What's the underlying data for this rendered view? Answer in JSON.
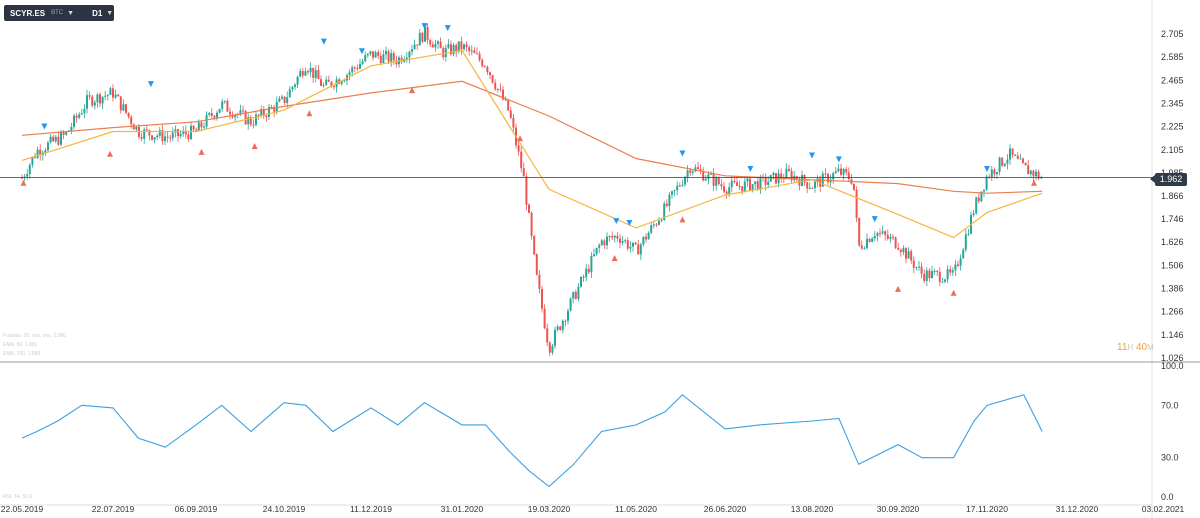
{
  "toolbar": {
    "symbol": "SCYR.ES",
    "symbol_sub": "BTC",
    "timeframe": "D1"
  },
  "colors": {
    "bull": "#26a69a",
    "bear": "#ef5350",
    "ma_fast": "#f4b63e",
    "ma_slow": "#ea7e4f",
    "rsi": "#3aa0e0",
    "current_line": "#2f3b48",
    "fractal_up": "#2196f3",
    "fractal_down": "#ef6c57",
    "axis_text": "#333333",
    "grid": "#e8e8e8"
  },
  "price_panel": {
    "y_ticks": [
      "2.705",
      "2.585",
      "2.465",
      "2.345",
      "2.225",
      "2.105",
      "1.985",
      "1.866",
      "1.746",
      "1.626",
      "1.506",
      "1.386",
      "1.266",
      "1.146",
      "1.026"
    ],
    "current_price": "1.962",
    "countdown": {
      "hours": "11",
      "hours_unit": "H",
      "minutes": "40",
      "minutes_unit": "M"
    },
    "legend_lines": [
      "Fractals, 20, ons, ons, 0.000",
      "EMA, 50, 1.881",
      "EMA, 200, 1.889"
    ]
  },
  "rsi_panel": {
    "y_ticks": [
      "100.0",
      "70.0",
      "30.0",
      "0.0"
    ],
    "legend": "RSI, 14, 50.0"
  },
  "x_axis": {
    "ticks": [
      "22.05.2019",
      "22.07.2019",
      "06.09.2019",
      "24.10.2019",
      "11.12.2019",
      "31.01.2020",
      "19.03.2020",
      "11.05.2020",
      "26.06.2020",
      "13.08.2020",
      "30.09.2020",
      "17.11.2020",
      "31.12.2020",
      "03.02.2021"
    ]
  },
  "chart_data": [
    {
      "type": "candlestick",
      "title": "SCYR.ES D1",
      "x_start": "22.05.2019",
      "x_end": "03.02.2021",
      "ylim": [
        1.026,
        2.705
      ],
      "current_price": 1.962,
      "close_path": [
        [
          "22.05.2019",
          1.96
        ],
        [
          "01.06.2019",
          2.1
        ],
        [
          "20.06.2019",
          2.18
        ],
        [
          "05.07.2019",
          2.36
        ],
        [
          "22.07.2019",
          2.4
        ],
        [
          "05.08.2019",
          2.2
        ],
        [
          "22.08.2019",
          2.17
        ],
        [
          "06.09.2019",
          2.2
        ],
        [
          "20.09.2019",
          2.34
        ],
        [
          "06.10.2019",
          2.25
        ],
        [
          "24.10.2019",
          2.36
        ],
        [
          "05.11.2019",
          2.55
        ],
        [
          "15.11.2019",
          2.43
        ],
        [
          "28.11.2019",
          2.5
        ],
        [
          "11.12.2019",
          2.6
        ],
        [
          "26.12.2019",
          2.57
        ],
        [
          "10.01.2020",
          2.71
        ],
        [
          "20.01.2020",
          2.61
        ],
        [
          "31.01.2020",
          2.64
        ],
        [
          "13.02.2020",
          2.55
        ],
        [
          "26.02.2020",
          2.3
        ],
        [
          "05.03.2020",
          1.96
        ],
        [
          "12.03.2020",
          1.45
        ],
        [
          "19.03.2020",
          1.08
        ],
        [
          "03.04.2020",
          1.34
        ],
        [
          "20.04.2020",
          1.63
        ],
        [
          "30.04.2020",
          1.66
        ],
        [
          "11.05.2020",
          1.58
        ],
        [
          "26.05.2020",
          1.8
        ],
        [
          "08.06.2020",
          2.02
        ],
        [
          "26.06.2020",
          1.91
        ],
        [
          "15.07.2020",
          1.93
        ],
        [
          "31.07.2020",
          1.98
        ],
        [
          "13.08.2020",
          1.92
        ],
        [
          "28.08.2020",
          1.99
        ],
        [
          "05.09.2020",
          1.95
        ],
        [
          "08.09.2020",
          1.6
        ],
        [
          "17.09.2020",
          1.68
        ],
        [
          "30.09.2020",
          1.62
        ],
        [
          "13.10.2020",
          1.46
        ],
        [
          "30.10.2020",
          1.45
        ],
        [
          "10.11.2020",
          1.8
        ],
        [
          "17.11.2020",
          1.97
        ],
        [
          "28.11.2020",
          2.08
        ],
        [
          "05.12.2020",
          2.01
        ],
        [
          "14.12.2020",
          1.96
        ]
      ],
      "ema_fast_path": [
        [
          "22.05.2019",
          2.05
        ],
        [
          "22.07.2019",
          2.2
        ],
        [
          "06.09.2019",
          2.2
        ],
        [
          "24.10.2019",
          2.31
        ],
        [
          "11.12.2019",
          2.54
        ],
        [
          "31.01.2020",
          2.62
        ],
        [
          "19.03.2020",
          1.9
        ],
        [
          "11.05.2020",
          1.7
        ],
        [
          "26.06.2020",
          1.87
        ],
        [
          "13.08.2020",
          1.95
        ],
        [
          "30.09.2020",
          1.77
        ],
        [
          "30.10.2020",
          1.65
        ],
        [
          "17.11.2020",
          1.78
        ],
        [
          "14.12.2020",
          1.88
        ]
      ],
      "ema_slow_path": [
        [
          "22.05.2019",
          2.18
        ],
        [
          "22.07.2019",
          2.22
        ],
        [
          "06.09.2019",
          2.25
        ],
        [
          "24.10.2019",
          2.33
        ],
        [
          "11.12.2019",
          2.4
        ],
        [
          "31.01.2020",
          2.46
        ],
        [
          "19.03.2020",
          2.28
        ],
        [
          "11.05.2020",
          2.06
        ],
        [
          "26.06.2020",
          1.97
        ],
        [
          "13.08.2020",
          1.95
        ],
        [
          "30.09.2020",
          1.93
        ],
        [
          "30.10.2020",
          1.89
        ],
        [
          "17.11.2020",
          1.88
        ],
        [
          "14.12.2020",
          1.89
        ]
      ],
      "fractals_up": [
        [
          "06.06.2019",
          2.21
        ],
        [
          "12.08.2019",
          2.43
        ],
        [
          "15.11.2019",
          2.65
        ],
        [
          "06.12.2019",
          2.6
        ],
        [
          "10.01.2020",
          2.73
        ],
        [
          "23.01.2020",
          2.72
        ],
        [
          "29.04.2020",
          1.72
        ],
        [
          "07.05.2020",
          1.71
        ],
        [
          "04.06.2020",
          2.07
        ],
        [
          "10.07.2020",
          1.99
        ],
        [
          "13.08.2020",
          2.06
        ],
        [
          "28.08.2020",
          2.04
        ],
        [
          "17.09.2020",
          1.73
        ],
        [
          "17.11.2020",
          1.99
        ]
      ],
      "fractals_down": [
        [
          "23.05.2019",
          1.95
        ],
        [
          "20.07.2019",
          2.1
        ],
        [
          "09.09.2019",
          2.11
        ],
        [
          "08.10.2019",
          2.14
        ],
        [
          "07.11.2019",
          2.31
        ],
        [
          "03.01.2020",
          2.43
        ],
        [
          "03.03.2020",
          2.18
        ],
        [
          "28.04.2020",
          1.56
        ],
        [
          "04.06.2020",
          1.76
        ],
        [
          "30.09.2020",
          1.4
        ],
        [
          "30.10.2020",
          1.38
        ],
        [
          "10.12.2020",
          1.95
        ]
      ]
    },
    {
      "type": "line",
      "title": "RSI, 14",
      "ylim": [
        0,
        100
      ],
      "y_ticks": [
        0,
        30,
        70,
        100
      ],
      "path": [
        [
          "22.05.2019",
          45
        ],
        [
          "01.06.2019",
          50
        ],
        [
          "15.06.2019",
          58
        ],
        [
          "01.07.2019",
          70
        ],
        [
          "22.07.2019",
          68
        ],
        [
          "05.08.2019",
          45
        ],
        [
          "20.08.2019",
          38
        ],
        [
          "06.09.2019",
          55
        ],
        [
          "20.09.2019",
          70
        ],
        [
          "06.10.2019",
          50
        ],
        [
          "24.10.2019",
          72
        ],
        [
          "05.11.2019",
          70
        ],
        [
          "20.11.2019",
          50
        ],
        [
          "11.12.2019",
          68
        ],
        [
          "26.12.2019",
          55
        ],
        [
          "10.01.2020",
          72
        ],
        [
          "31.01.2020",
          55
        ],
        [
          "13.02.2020",
          55
        ],
        [
          "26.02.2020",
          35
        ],
        [
          "08.03.2020",
          20
        ],
        [
          "19.03.2020",
          8
        ],
        [
          "03.04.2020",
          25
        ],
        [
          "20.04.2020",
          50
        ],
        [
          "11.05.2020",
          55
        ],
        [
          "26.05.2020",
          65
        ],
        [
          "04.06.2020",
          78
        ],
        [
          "26.06.2020",
          52
        ],
        [
          "15.07.2020",
          55
        ],
        [
          "13.08.2020",
          58
        ],
        [
          "28.08.2020",
          60
        ],
        [
          "08.09.2020",
          25
        ],
        [
          "30.09.2020",
          40
        ],
        [
          "13.10.2020",
          30
        ],
        [
          "30.10.2020",
          30
        ],
        [
          "10.11.2020",
          58
        ],
        [
          "17.11.2020",
          70
        ],
        [
          "05.12.2020",
          78
        ],
        [
          "14.12.2020",
          50
        ]
      ]
    }
  ]
}
